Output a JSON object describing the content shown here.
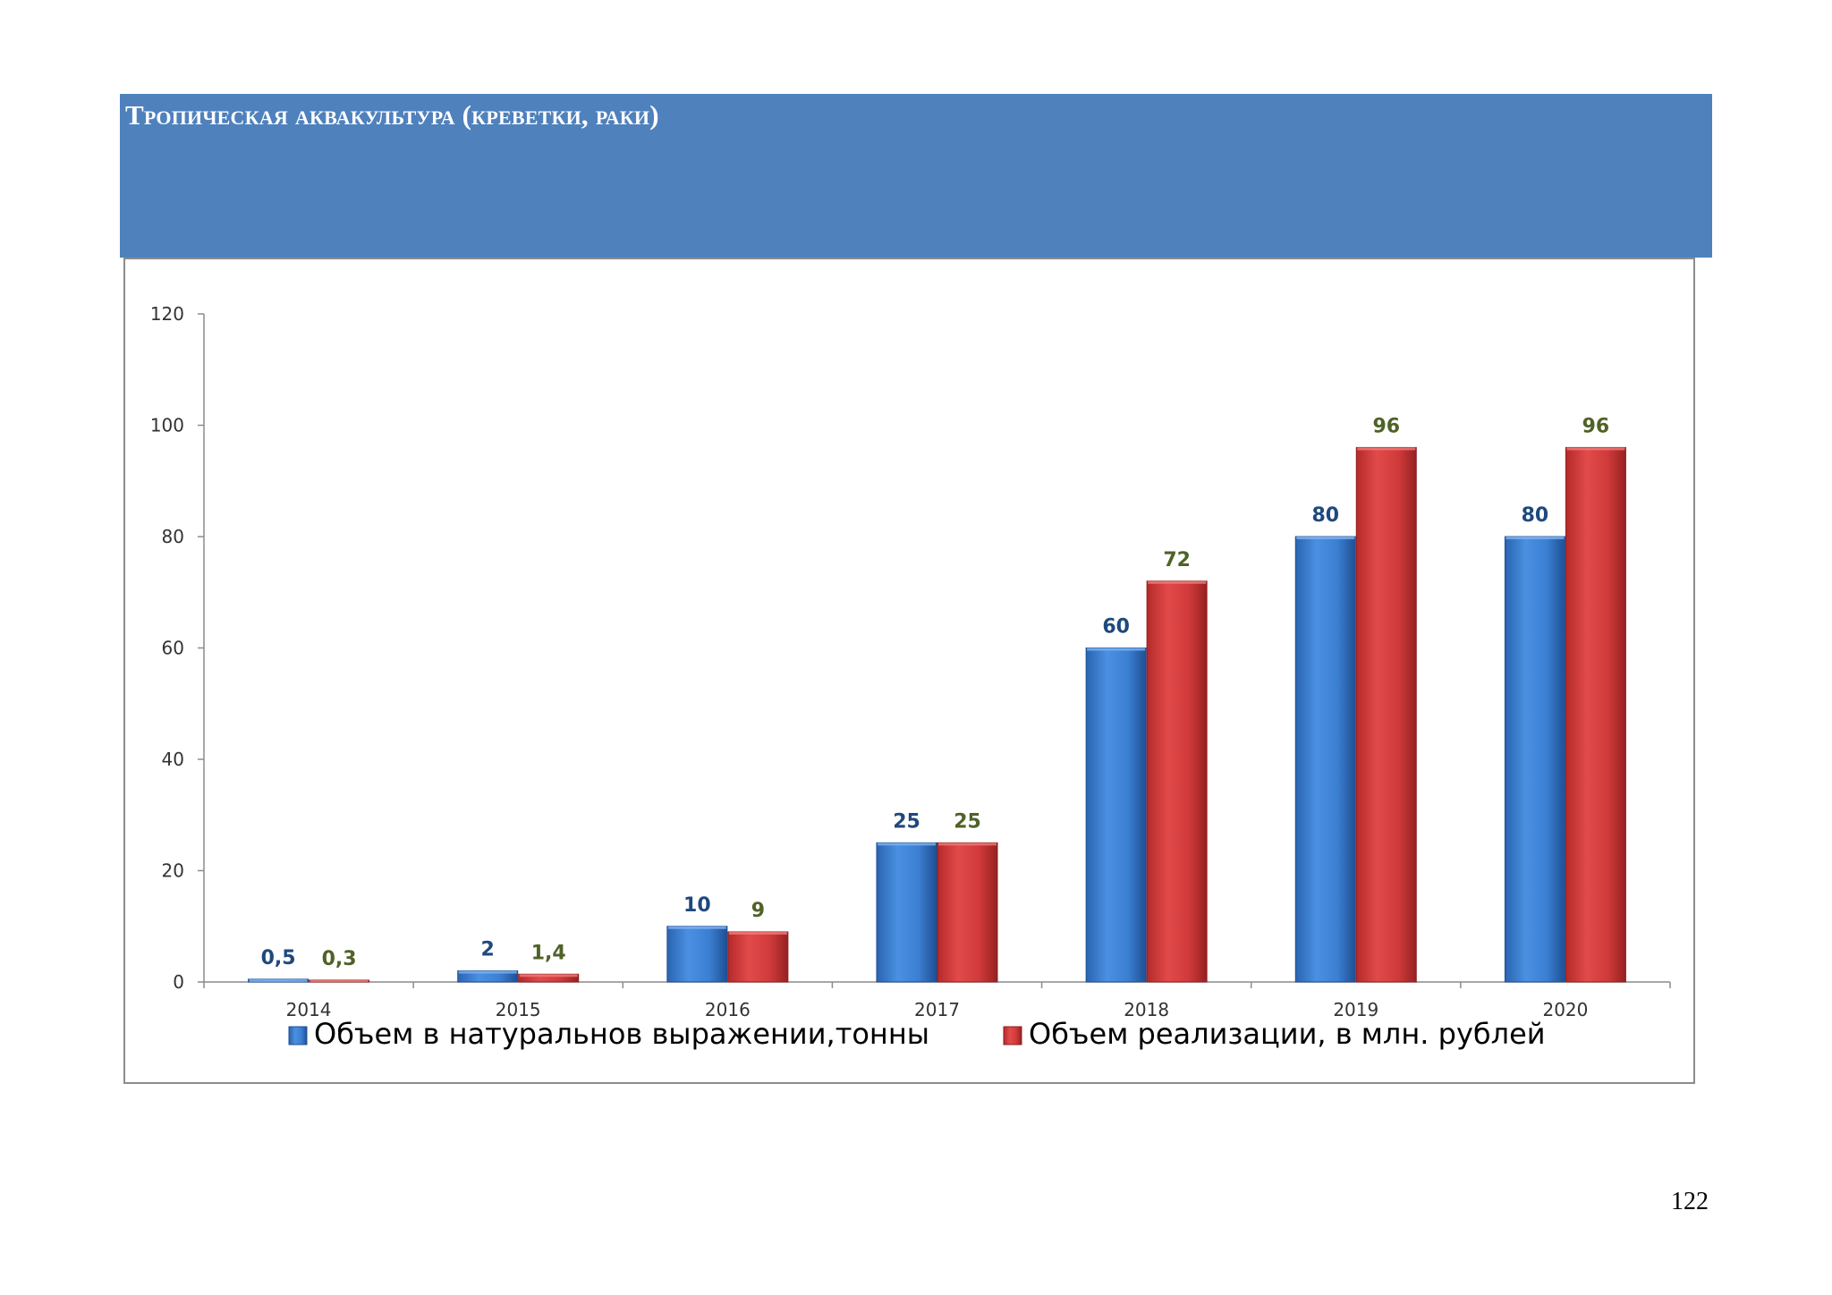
{
  "page": {
    "title": "Тропическая аквакультура (креветки, раки)",
    "page_number": "122"
  },
  "colors": {
    "header_band": "#4f81bd",
    "series_blue": "#3a7fd5",
    "series_red": "#d43c3c",
    "label_blue": "#1f497d",
    "label_olive": "#4f6228"
  },
  "chart_data": {
    "type": "bar",
    "title": "",
    "xlabel": "",
    "ylabel": "",
    "categories": [
      "2014",
      "2015",
      "2016",
      "2017",
      "2018",
      "2019",
      "2020"
    ],
    "ylim": [
      0,
      120
    ],
    "yticks": [
      "0",
      "20",
      "40",
      "60",
      "80",
      "100",
      "120"
    ],
    "grid": false,
    "legend_position": "bottom",
    "series": [
      {
        "name": "Объем в натуральнов выражении,тонны",
        "values": [
          0.5,
          2,
          10,
          25,
          60,
          80,
          80
        ],
        "labels": [
          "0,5",
          "2",
          "10",
          "25",
          "60",
          "80",
          "80"
        ]
      },
      {
        "name": "Объем реализации, в млн. рублей",
        "values": [
          0.3,
          1.4,
          9,
          25,
          72,
          96,
          96
        ],
        "labels": [
          "0,3",
          "1,4",
          "9",
          "25",
          "72",
          "96",
          "96"
        ]
      }
    ]
  }
}
